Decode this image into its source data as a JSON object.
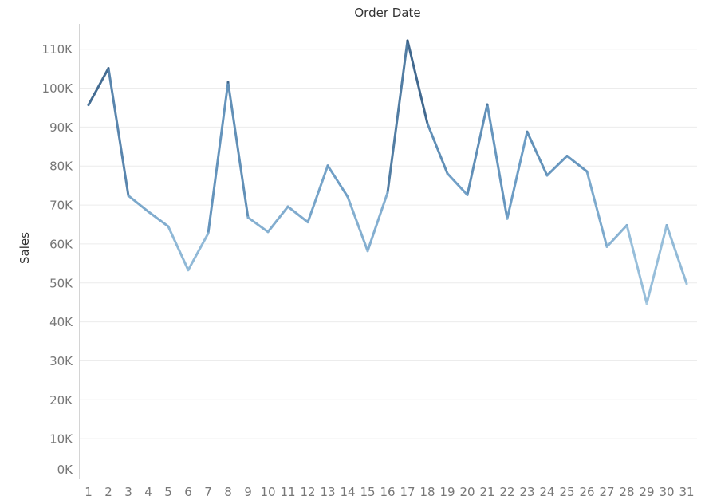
{
  "chart_data": {
    "type": "line",
    "title": "Order Date",
    "xlabel": "",
    "ylabel": "Sales",
    "x": [
      1,
      2,
      3,
      4,
      5,
      6,
      7,
      8,
      9,
      10,
      11,
      12,
      13,
      14,
      15,
      16,
      17,
      18,
      19,
      20,
      21,
      22,
      23,
      24,
      25,
      26,
      27,
      28,
      29,
      30,
      31
    ],
    "series": [
      {
        "values": [
          95700,
          105100,
          72400,
          68300,
          64500,
          53300,
          62700,
          101500,
          66800,
          63100,
          69600,
          65600,
          80100,
          72100,
          58200,
          73200,
          112200,
          90900,
          78100,
          72600,
          95800,
          66500,
          88800,
          77600,
          82600,
          78600,
          59300,
          64800,
          44700,
          64800,
          49800
        ]
      }
    ],
    "ylim": [
      0,
      115000
    ],
    "y_ticks": [
      0,
      10000,
      20000,
      30000,
      40000,
      50000,
      60000,
      70000,
      80000,
      90000,
      100000,
      110000
    ],
    "y_tick_labels": [
      "0K",
      "10K",
      "20K",
      "30K",
      "40K",
      "50K",
      "60K",
      "70K",
      "80K",
      "90K",
      "100K",
      "110K"
    ],
    "x_tick_labels": [
      "1",
      "2",
      "3",
      "4",
      "5",
      "6",
      "7",
      "8",
      "9",
      "10",
      "11",
      "12",
      "13",
      "14",
      "15",
      "16",
      "17",
      "18",
      "19",
      "20",
      "21",
      "22",
      "23",
      "24",
      "25",
      "26",
      "27",
      "28",
      "29",
      "30",
      "31"
    ],
    "grid": true,
    "legend": "none",
    "color_encoding": "sequential-blue-by-value",
    "colors": {
      "low": "#a9cce3",
      "mid": "#6c9cc4",
      "high": "#2e5277"
    }
  }
}
